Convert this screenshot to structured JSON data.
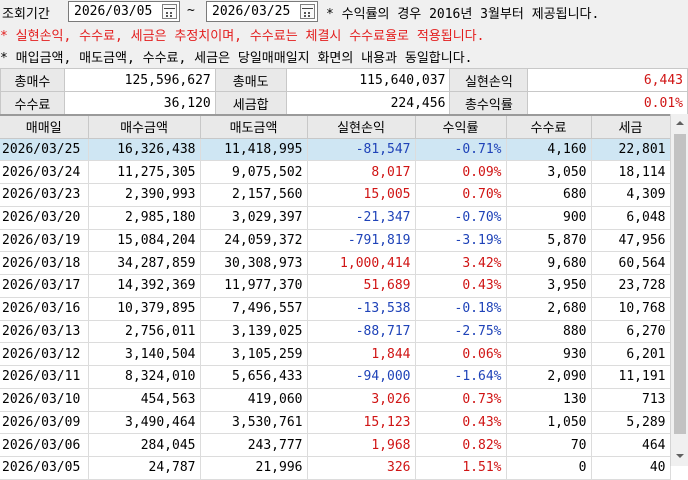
{
  "filter": {
    "period_label": "조회기간",
    "start_date": "2026/03/05",
    "separator": "~",
    "end_date": "2026/03/25",
    "period_note": "* 수익률의 경우 2016년 3월부터 제공됩니다."
  },
  "notes": [
    {
      "text": "* 실현손익, 수수료, 세금은 추정치이며, 수수료는 체결시 수수료율로 적용됩니다.",
      "color": "red"
    },
    {
      "text": "* 매입금액, 매도금액, 수수료, 세금은 당일매매일지 화면의 내용과 동일합니다.",
      "color": "black"
    }
  ],
  "summary": {
    "row1": [
      {
        "label": "총매수",
        "value": "125,596,627"
      },
      {
        "label": "총매도",
        "value": "115,640,037"
      },
      {
        "label": "실현손익",
        "value": "6,443"
      }
    ],
    "row2": [
      {
        "label": "수수료",
        "value": "36,120"
      },
      {
        "label": "세금합",
        "value": "224,456"
      },
      {
        "label": "총수익률",
        "value": "0.01%"
      }
    ]
  },
  "table": {
    "headers": [
      "매매일",
      "매수금액",
      "매도금액",
      "실현손익",
      "수익률",
      "수수료",
      "세금"
    ],
    "rows": [
      [
        "2026/03/25",
        "16,326,438",
        "11,418,995",
        "-81,547",
        "-0.71%",
        "4,160",
        "22,801"
      ],
      [
        "2026/03/24",
        "11,275,305",
        "9,075,502",
        "8,017",
        "0.09%",
        "3,050",
        "18,114"
      ],
      [
        "2026/03/23",
        "2,390,993",
        "2,157,560",
        "15,005",
        "0.70%",
        "680",
        "4,309"
      ],
      [
        "2026/03/20",
        "2,985,180",
        "3,029,397",
        "-21,347",
        "-0.70%",
        "900",
        "6,048"
      ],
      [
        "2026/03/19",
        "15,084,204",
        "24,059,372",
        "-791,819",
        "-3.19%",
        "5,870",
        "47,956"
      ],
      [
        "2026/03/18",
        "34,287,859",
        "30,308,973",
        "1,000,414",
        "3.42%",
        "9,680",
        "60,564"
      ],
      [
        "2026/03/17",
        "14,392,369",
        "11,977,370",
        "51,689",
        "0.43%",
        "3,950",
        "23,728"
      ],
      [
        "2026/03/16",
        "10,379,895",
        "7,496,557",
        "-13,538",
        "-0.18%",
        "2,680",
        "10,768"
      ],
      [
        "2026/03/13",
        "2,756,011",
        "3,139,025",
        "-88,717",
        "-2.75%",
        "880",
        "6,270"
      ],
      [
        "2026/03/12",
        "3,140,504",
        "3,105,259",
        "1,844",
        "0.06%",
        "930",
        "6,201"
      ],
      [
        "2026/03/11",
        "8,324,010",
        "5,656,433",
        "-94,000",
        "-1.64%",
        "2,090",
        "11,191"
      ],
      [
        "2026/03/10",
        "454,563",
        "419,060",
        "3,026",
        "0.73%",
        "130",
        "713"
      ],
      [
        "2026/03/09",
        "3,490,464",
        "3,530,761",
        "15,123",
        "0.43%",
        "1,050",
        "5,289"
      ],
      [
        "2026/03/06",
        "284,045",
        "243,777",
        "1,968",
        "0.82%",
        "70",
        "464"
      ],
      [
        "2026/03/05",
        "24,787",
        "21,996",
        "326",
        "1.51%",
        "0",
        "40"
      ]
    ]
  },
  "colors": {
    "positive": "#d01414",
    "negative": "#1f43b8",
    "selected_row": "#cfe6f3",
    "note_red": "#e31d1d"
  }
}
